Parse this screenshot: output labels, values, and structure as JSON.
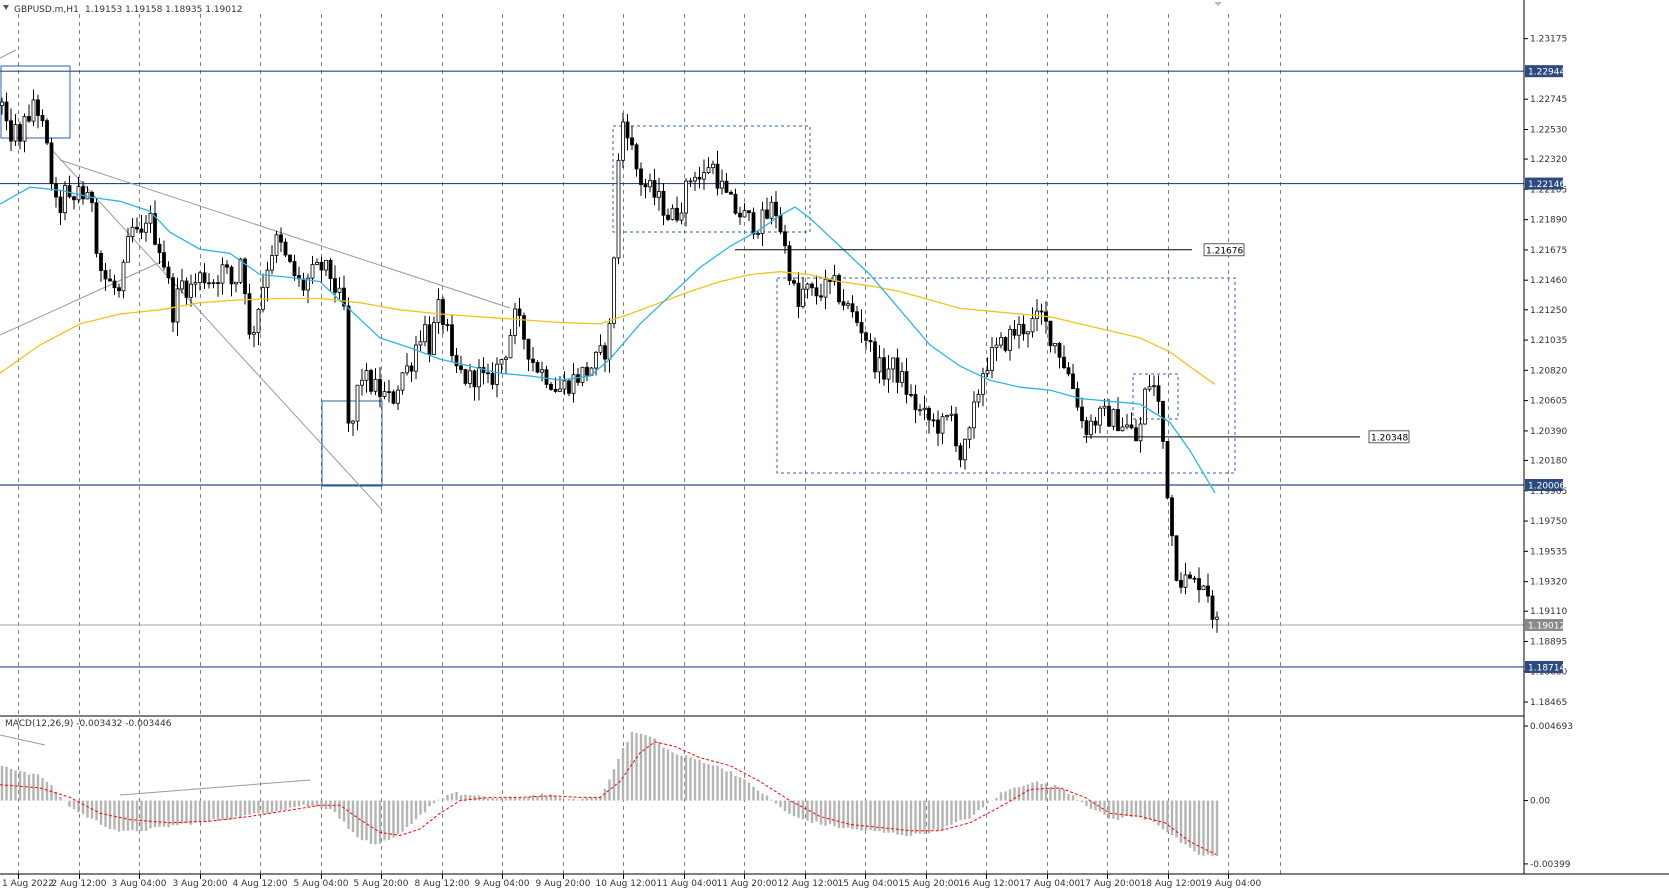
{
  "window": {
    "symbol_label": "GBPUSD.m,H1",
    "ohlc_label": "1.19153 1.19158 1.18935 1.19012",
    "dropdown_icon": "triangle-down-icon"
  },
  "colors": {
    "background": "#ffffff",
    "grid": "#4a4a4a",
    "candle_up": "#ffffff",
    "candle_down": "#000000",
    "candle_outline": "#000000",
    "ma_fast": "#29b6e6",
    "ma_slow": "#f2c21a",
    "hline": "#2d4a80",
    "trend": "#9a9a9a",
    "box_blue": "#2d5fb5",
    "macd_hist": "#b4b4b4",
    "macd_signal": "#ff0000",
    "tag_bg": "#2d4a80",
    "tag_text": "#ffffff",
    "current_price_line": "#a0a0a0"
  },
  "price_axis": {
    "labels": [
      "1.23175",
      "1.22745",
      "1.22530",
      "1.22320",
      "1.22105",
      "1.21890",
      "1.21675",
      "1.21460",
      "1.21250",
      "1.21035",
      "1.20820",
      "1.20605",
      "1.20390",
      "1.20180",
      "1.19965",
      "1.19750",
      "1.19535",
      "1.19320",
      "1.19110",
      "1.18895",
      "1.18680",
      "1.18465"
    ],
    "tags": [
      {
        "value": 1.22944,
        "label": "1.22944"
      },
      {
        "value": 1.22146,
        "label": "1.22146"
      },
      {
        "value": 1.20006,
        "label": "1.20006"
      },
      {
        "value": 1.19012,
        "label": "1.19012"
      },
      {
        "value": 1.18714,
        "label": "1.18714"
      }
    ]
  },
  "time_axis": {
    "labels": [
      "1 Aug 2022",
      "2 Aug 12:00",
      "3 Aug 04:00",
      "3 Aug 20:00",
      "4 Aug 12:00",
      "5 Aug 04:00",
      "5 Aug 20:00",
      "8 Aug 12:00",
      "9 Aug 04:00",
      "9 Aug 20:00",
      "10 Aug 12:00",
      "11 Aug 04:00",
      "11 Aug 20:00",
      "12 Aug 12:00",
      "15 Aug 04:00",
      "15 Aug 20:00",
      "16 Aug 12:00",
      "17 Aug 04:00",
      "17 Aug 20:00",
      "18 Aug 12:00",
      "19 Aug 04:00"
    ]
  },
  "indicator": {
    "label": "MACD(12,26,9) -0.003432 -0.003446",
    "axis_labels": [
      "0.004693",
      "0.00",
      "-0.00399"
    ]
  },
  "annotations": {
    "level_1_label": "1.21676",
    "level_2_label": "1.20348"
  },
  "chart_data": {
    "type": "candlestick",
    "symbol": "GBPUSD.m",
    "timeframe": "H1",
    "ylim": [
      1.1838,
      1.2335
    ],
    "start_time": "1 Aug 2022",
    "overlays": [
      "MA fast (cyan)",
      "MA slow (yellow)"
    ],
    "horizontal_levels": [
      1.22944,
      1.22146,
      1.20006,
      1.18714
    ],
    "price_path": [
      [
        0,
        1.227
      ],
      [
        6,
        1.2245
      ],
      [
        12,
        1.2255
      ],
      [
        18,
        1.224
      ],
      [
        22,
        1.2268
      ],
      [
        28,
        1.225
      ],
      [
        32,
        1.2278
      ],
      [
        40,
        1.2255
      ],
      [
        46,
        1.2235
      ],
      [
        52,
        1.2205
      ],
      [
        56,
        1.219
      ],
      [
        62,
        1.221
      ],
      [
        70,
        1.2195
      ],
      [
        76,
        1.2215
      ],
      [
        84,
        1.22
      ],
      [
        90,
        1.2205
      ],
      [
        94,
        1.2175
      ],
      [
        100,
        1.215
      ],
      [
        110,
        1.2142
      ],
      [
        118,
        1.2135
      ],
      [
        125,
        1.2168
      ],
      [
        132,
        1.2185
      ],
      [
        138,
        1.217
      ],
      [
        145,
        1.2195
      ],
      [
        152,
        1.218
      ],
      [
        160,
        1.2165
      ],
      [
        166,
        1.2145
      ],
      [
        172,
        1.212
      ],
      [
        178,
        1.2145
      ],
      [
        188,
        1.214
      ],
      [
        200,
        1.215
      ],
      [
        210,
        1.2145
      ],
      [
        222,
        1.2155
      ],
      [
        232,
        1.214
      ],
      [
        240,
        1.2168
      ],
      [
        248,
        1.21
      ],
      [
        254,
        1.212
      ],
      [
        260,
        1.214
      ],
      [
        268,
        1.2165
      ],
      [
        276,
        1.2175
      ],
      [
        284,
        1.216
      ],
      [
        292,
        1.215
      ],
      [
        300,
        1.214
      ],
      [
        310,
        1.215
      ],
      [
        320,
        1.2155
      ],
      [
        328,
        1.215
      ],
      [
        336,
        1.2135
      ],
      [
        342,
        1.2125
      ],
      [
        345,
        1.205
      ],
      [
        348,
        1.203
      ],
      [
        352,
        1.205
      ],
      [
        358,
        1.208
      ],
      [
        364,
        1.2075
      ],
      [
        372,
        1.207
      ],
      [
        380,
        1.2065
      ],
      [
        390,
        1.206
      ],
      [
        400,
        1.208
      ],
      [
        408,
        1.2085
      ],
      [
        414,
        1.21
      ],
      [
        422,
        1.2115
      ],
      [
        428,
        1.2098
      ],
      [
        436,
        1.2125
      ],
      [
        444,
        1.2115
      ],
      [
        450,
        1.2085
      ],
      [
        458,
        1.208
      ],
      [
        466,
        1.2075
      ],
      [
        476,
        1.208
      ],
      [
        486,
        1.2072
      ],
      [
        496,
        1.2085
      ],
      [
        506,
        1.21
      ],
      [
        512,
        1.212
      ],
      [
        520,
        1.211
      ],
      [
        530,
        1.209
      ],
      [
        538,
        1.2082
      ],
      [
        546,
        1.2078
      ],
      [
        556,
        1.2068
      ],
      [
        566,
        1.2073
      ],
      [
        576,
        1.2078
      ],
      [
        586,
        1.2082
      ],
      [
        596,
        1.209
      ],
      [
        604,
        1.2098
      ],
      [
        610,
        1.212
      ],
      [
        614,
        1.221
      ],
      [
        618,
        1.224
      ],
      [
        622,
        1.2265
      ],
      [
        627,
        1.225
      ],
      [
        632,
        1.223
      ],
      [
        640,
        1.2215
      ],
      [
        650,
        1.2208
      ],
      [
        660,
        1.22
      ],
      [
        668,
        1.219
      ],
      [
        676,
        1.2195
      ],
      [
        684,
        1.221
      ],
      [
        692,
        1.2225
      ],
      [
        700,
        1.2215
      ],
      [
        708,
        1.2232
      ],
      [
        716,
        1.2218
      ],
      [
        724,
        1.2205
      ],
      [
        734,
        1.2195
      ],
      [
        744,
        1.219
      ],
      [
        754,
        1.2185
      ],
      [
        764,
        1.219
      ],
      [
        772,
        1.22
      ],
      [
        778,
        1.2185
      ],
      [
        784,
        1.2165
      ],
      [
        790,
        1.2145
      ],
      [
        796,
        1.2125
      ],
      [
        802,
        1.214
      ],
      [
        812,
        1.2135
      ],
      [
        822,
        1.214
      ],
      [
        832,
        1.2142
      ],
      [
        842,
        1.213
      ],
      [
        852,
        1.212
      ],
      [
        862,
        1.211
      ],
      [
        872,
        1.209
      ],
      [
        880,
        1.208
      ],
      [
        890,
        1.2085
      ],
      [
        900,
        1.2075
      ],
      [
        910,
        1.206
      ],
      [
        920,
        1.205
      ],
      [
        930,
        1.2045
      ],
      [
        940,
        1.2042
      ],
      [
        950,
        1.205
      ],
      [
        958,
        1.202
      ],
      [
        966,
        1.203
      ],
      [
        974,
        1.206
      ],
      [
        982,
        1.2085
      ],
      [
        990,
        1.2092
      ],
      [
        1000,
        1.21
      ],
      [
        1010,
        1.2108
      ],
      [
        1020,
        1.2112
      ],
      [
        1030,
        1.2115
      ],
      [
        1040,
        1.212
      ],
      [
        1050,
        1.2105
      ],
      [
        1058,
        1.2095
      ],
      [
        1066,
        1.208
      ],
      [
        1074,
        1.2065
      ],
      [
        1082,
        1.204
      ],
      [
        1090,
        1.2045
      ],
      [
        1100,
        1.205
      ],
      [
        1110,
        1.2048
      ],
      [
        1120,
        1.2045
      ],
      [
        1128,
        1.204
      ],
      [
        1136,
        1.203
      ],
      [
        1144,
        1.207
      ],
      [
        1150,
        1.2075
      ],
      [
        1156,
        1.206
      ],
      [
        1160,
        1.204
      ],
      [
        1164,
        1.2005
      ],
      [
        1168,
        1.1985
      ],
      [
        1172,
        1.1945
      ],
      [
        1178,
        1.1935
      ],
      [
        1186,
        1.1932
      ],
      [
        1194,
        1.193
      ],
      [
        1200,
        1.1935
      ],
      [
        1206,
        1.1925
      ],
      [
        1212,
        1.1905
      ],
      [
        1216,
        1.19
      ]
    ],
    "ma_fast": [
      [
        0,
        1.22
      ],
      [
        30,
        1.2212
      ],
      [
        60,
        1.221
      ],
      [
        90,
        1.2205
      ],
      [
        120,
        1.2202
      ],
      [
        150,
        1.2195
      ],
      [
        170,
        1.218
      ],
      [
        200,
        1.2168
      ],
      [
        230,
        1.2165
      ],
      [
        260,
        1.215
      ],
      [
        290,
        1.2148
      ],
      [
        320,
        1.2145
      ],
      [
        350,
        1.2125
      ],
      [
        380,
        1.2105
      ],
      [
        410,
        1.2098
      ],
      [
        440,
        1.209
      ],
      [
        470,
        1.2085
      ],
      [
        500,
        1.208
      ],
      [
        530,
        1.2078
      ],
      [
        560,
        1.2075
      ],
      [
        590,
        1.2078
      ],
      [
        610,
        1.209
      ],
      [
        640,
        1.2115
      ],
      [
        670,
        1.2135
      ],
      [
        700,
        1.2155
      ],
      [
        730,
        1.217
      ],
      [
        760,
        1.2182
      ],
      [
        780,
        1.2192
      ],
      [
        795,
        1.2198
      ],
      [
        810,
        1.219
      ],
      [
        840,
        1.217
      ],
      [
        870,
        1.215
      ],
      [
        900,
        1.2125
      ],
      [
        930,
        1.21
      ],
      [
        960,
        1.2085
      ],
      [
        990,
        1.2075
      ],
      [
        1020,
        1.207
      ],
      [
        1050,
        1.2068
      ],
      [
        1080,
        1.2062
      ],
      [
        1110,
        1.206
      ],
      [
        1140,
        1.2058
      ],
      [
        1170,
        1.2045
      ],
      [
        1190,
        1.2025
      ],
      [
        1215,
        1.1995
      ]
    ],
    "ma_slow": [
      [
        0,
        1.208
      ],
      [
        40,
        1.21
      ],
      [
        80,
        1.2115
      ],
      [
        120,
        1.2122
      ],
      [
        160,
        1.2125
      ],
      [
        200,
        1.213
      ],
      [
        240,
        1.2132
      ],
      [
        280,
        1.2133
      ],
      [
        320,
        1.2133
      ],
      [
        360,
        1.213
      ],
      [
        400,
        1.2125
      ],
      [
        440,
        1.2122
      ],
      [
        480,
        1.212
      ],
      [
        520,
        1.2118
      ],
      [
        560,
        1.2116
      ],
      [
        600,
        1.2115
      ],
      [
        630,
        1.2122
      ],
      [
        660,
        1.213
      ],
      [
        690,
        1.2138
      ],
      [
        720,
        1.2145
      ],
      [
        750,
        1.215
      ],
      [
        780,
        1.2152
      ],
      [
        810,
        1.215
      ],
      [
        840,
        1.2145
      ],
      [
        870,
        1.2142
      ],
      [
        900,
        1.2138
      ],
      [
        930,
        1.2132
      ],
      [
        960,
        1.2126
      ],
      [
        990,
        1.2124
      ],
      [
        1020,
        1.2122
      ],
      [
        1050,
        1.212
      ],
      [
        1080,
        1.2115
      ],
      [
        1110,
        1.211
      ],
      [
        1140,
        1.2105
      ],
      [
        1170,
        1.2095
      ],
      [
        1195,
        1.2082
      ],
      [
        1215,
        1.2072
      ]
    ],
    "macd": {
      "hist": [
        [
          0,
          0.0022
        ],
        [
          40,
          0.0015
        ],
        [
          70,
          -0.0005
        ],
        [
          100,
          -0.0015
        ],
        [
          120,
          -0.002
        ],
        [
          150,
          -0.0018
        ],
        [
          180,
          -0.0015
        ],
        [
          220,
          -0.0012
        ],
        [
          260,
          -0.0008
        ],
        [
          300,
          -0.0003
        ],
        [
          330,
          -0.0005
        ],
        [
          350,
          -0.002
        ],
        [
          370,
          -0.0028
        ],
        [
          390,
          -0.0025
        ],
        [
          410,
          -0.0015
        ],
        [
          430,
          -0.0002
        ],
        [
          450,
          0.0005
        ],
        [
          480,
          0.0002
        ],
        [
          510,
          0.0001
        ],
        [
          540,
          0.0004
        ],
        [
          570,
          0.0
        ],
        [
          600,
          0.0003
        ],
        [
          615,
          0.0025
        ],
        [
          630,
          0.0043
        ],
        [
          650,
          0.004
        ],
        [
          670,
          0.003
        ],
        [
          700,
          0.0025
        ],
        [
          730,
          0.0018
        ],
        [
          760,
          0.0005
        ],
        [
          790,
          -0.001
        ],
        [
          820,
          -0.0015
        ],
        [
          850,
          -0.0018
        ],
        [
          880,
          -0.002
        ],
        [
          910,
          -0.0022
        ],
        [
          940,
          -0.0018
        ],
        [
          970,
          -0.001
        ],
        [
          1000,
          0.0005
        ],
        [
          1030,
          0.0012
        ],
        [
          1060,
          0.0008
        ],
        [
          1090,
          -0.0005
        ],
        [
          1110,
          -0.0012
        ],
        [
          1130,
          -0.001
        ],
        [
          1150,
          -0.0012
        ],
        [
          1170,
          -0.0022
        ],
        [
          1195,
          -0.0034
        ],
        [
          1216,
          -0.0035
        ]
      ],
      "signal": [
        [
          0,
          0.001
        ],
        [
          40,
          0.0008
        ],
        [
          70,
          0.0002
        ],
        [
          100,
          -0.0008
        ],
        [
          130,
          -0.0012
        ],
        [
          170,
          -0.0014
        ],
        [
          210,
          -0.0013
        ],
        [
          250,
          -0.001
        ],
        [
          290,
          -0.0006
        ],
        [
          320,
          -0.0003
        ],
        [
          340,
          -0.0003
        ],
        [
          360,
          -0.0012
        ],
        [
          380,
          -0.002
        ],
        [
          400,
          -0.0022
        ],
        [
          420,
          -0.0018
        ],
        [
          440,
          -0.0008
        ],
        [
          460,
          0.0
        ],
        [
          490,
          0.0002
        ],
        [
          520,
          0.0002
        ],
        [
          550,
          0.0003
        ],
        [
          580,
          0.0002
        ],
        [
          600,
          0.0002
        ],
        [
          620,
          0.0012
        ],
        [
          640,
          0.003
        ],
        [
          655,
          0.0037
        ],
        [
          675,
          0.0034
        ],
        [
          700,
          0.0027
        ],
        [
          730,
          0.0022
        ],
        [
          760,
          0.0012
        ],
        [
          790,
          0.0
        ],
        [
          820,
          -0.001
        ],
        [
          850,
          -0.0015
        ],
        [
          880,
          -0.0017
        ],
        [
          910,
          -0.0019
        ],
        [
          940,
          -0.0019
        ],
        [
          970,
          -0.0014
        ],
        [
          1000,
          -0.0004
        ],
        [
          1030,
          0.0007
        ],
        [
          1060,
          0.0008
        ],
        [
          1085,
          0.0002
        ],
        [
          1110,
          -0.0008
        ],
        [
          1140,
          -0.001
        ],
        [
          1165,
          -0.0014
        ],
        [
          1190,
          -0.0026
        ],
        [
          1216,
          -0.0034
        ]
      ]
    }
  }
}
